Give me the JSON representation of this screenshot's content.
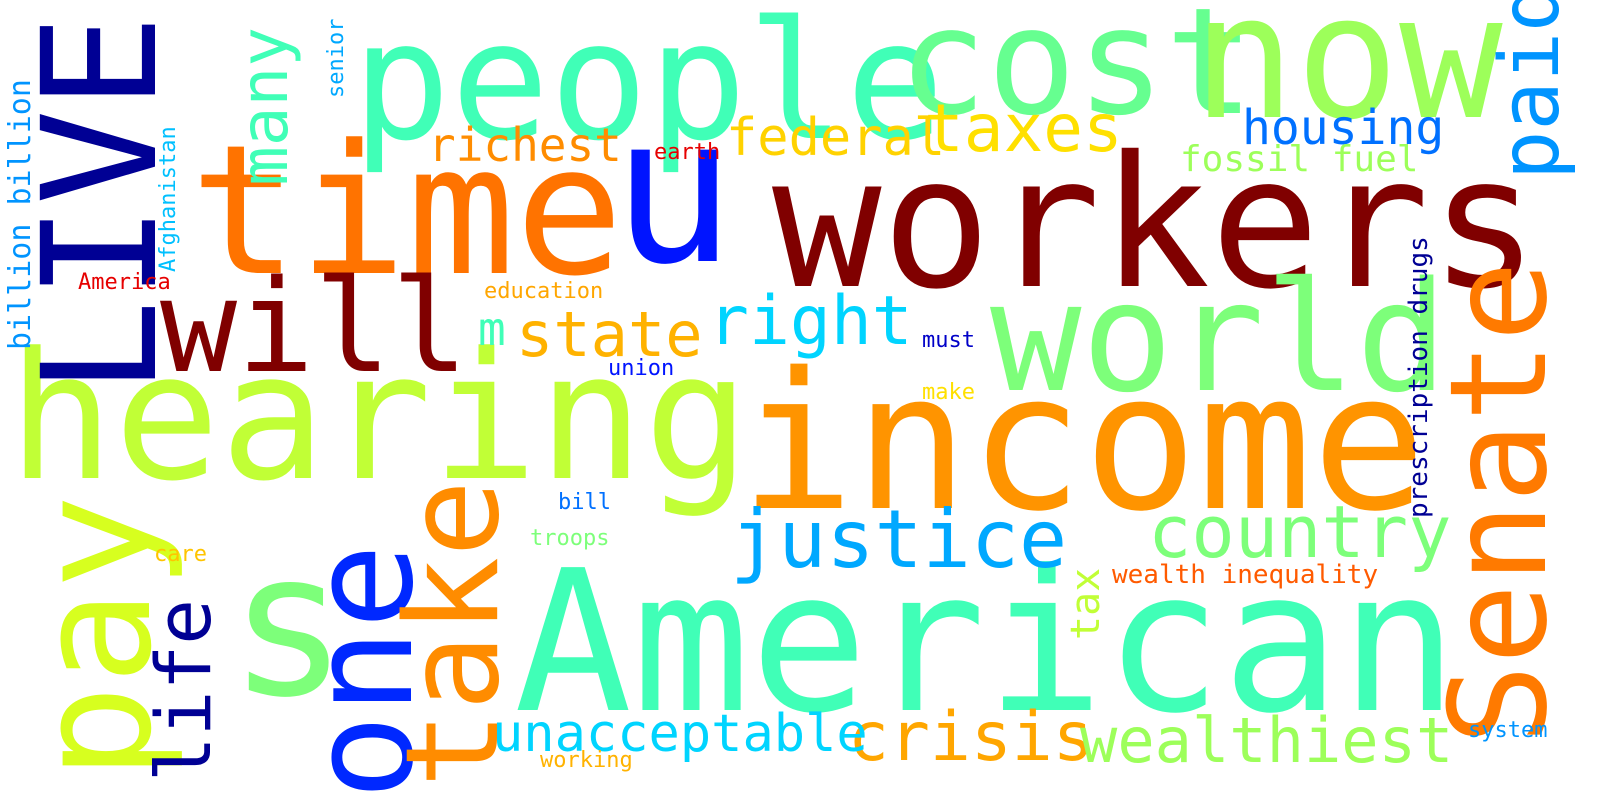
{
  "words": {
    "workers": {
      "text": "workers",
      "color": "#800000"
    },
    "american": {
      "text": "American",
      "color": "#40ffb7"
    },
    "income": {
      "text": "income",
      "color": "#ff9400"
    },
    "hearing": {
      "text": "hearing",
      "color": "#c1ff36"
    },
    "people": {
      "text": "people",
      "color": "#40ffb7"
    },
    "cost": {
      "text": "cost",
      "color": "#66ff90"
    },
    "now": {
      "text": "now",
      "color": "#9dff5a"
    },
    "time": {
      "text": "time",
      "color": "#ff7300"
    },
    "u": {
      "text": "u",
      "color": "#0014ff"
    },
    "live": {
      "text": "LIVE",
      "color": "#000094"
    },
    "world": {
      "text": "world",
      "color": "#7dff7a"
    },
    "will": {
      "text": "will",
      "color": "#800000"
    },
    "senate": {
      "text": "Senate",
      "color": "#ff7a00"
    },
    "pay": {
      "text": "pay",
      "color": "#d7ff1f"
    },
    "one": {
      "text": "one",
      "color": "#0028ff"
    },
    "s": {
      "text": "s",
      "color": "#7dff7a"
    },
    "take": {
      "text": "take",
      "color": "#ff8c00"
    },
    "justice": {
      "text": "justice",
      "color": "#00a8ff"
    },
    "country": {
      "text": "country",
      "color": "#7dff7a"
    },
    "crisis": {
      "text": "crisis",
      "color": "#ffa600"
    },
    "wealthiest": {
      "text": "wealthiest",
      "color": "#9dff5a"
    },
    "unacceptable": {
      "text": "unacceptable",
      "color": "#00d4ff"
    },
    "life": {
      "text": "life",
      "color": "#000094"
    },
    "many": {
      "text": "many",
      "color": "#40ffb7"
    },
    "paid": {
      "text": "paid",
      "color": "#0094ff"
    },
    "taxes": {
      "text": "taxes",
      "color": "#ffe000"
    },
    "housing": {
      "text": "housing",
      "color": "#0070ff"
    },
    "richest": {
      "text": "richest",
      "color": "#ff8c00"
    },
    "federal": {
      "text": "federal",
      "color": "#ffd200"
    },
    "right": {
      "text": "right",
      "color": "#00d4ff"
    },
    "state": {
      "text": "state",
      "color": "#ffb200"
    },
    "m": {
      "text": "m",
      "color": "#40ffb7"
    },
    "fossil_fuel": {
      "text": "fossil fuel",
      "color": "#9dff5a"
    },
    "billion": {
      "text": "billion billion",
      "color": "#0094ff"
    },
    "afghanistan": {
      "text": "Afghanistan",
      "color": "#00c0ff"
    },
    "america": {
      "text": "America",
      "color": "#e60000"
    },
    "senior": {
      "text": "senior",
      "color": "#00a8ff"
    },
    "earth": {
      "text": "earth",
      "color": "#e60000"
    },
    "education": {
      "text": "education",
      "color": "#ffa600"
    },
    "must": {
      "text": "must",
      "color": "#0000c8"
    },
    "union": {
      "text": "union",
      "color": "#0014ff"
    },
    "make": {
      "text": "make",
      "color": "#ffe000"
    },
    "bill": {
      "text": "bill",
      "color": "#0070ff"
    },
    "troops": {
      "text": "troops",
      "color": "#7dff7a"
    },
    "care": {
      "text": "care",
      "color": "#ffc400"
    },
    "tax": {
      "text": "tax",
      "color": "#c1ff36"
    },
    "wealth_inequality": {
      "text": "wealth inequality",
      "color": "#ff5a00"
    },
    "prescription_drugs": {
      "text": "prescription drugs",
      "color": "#000094"
    },
    "working": {
      "text": "working",
      "color": "#ffb200"
    },
    "system": {
      "text": "system",
      "color": "#0094ff"
    }
  }
}
